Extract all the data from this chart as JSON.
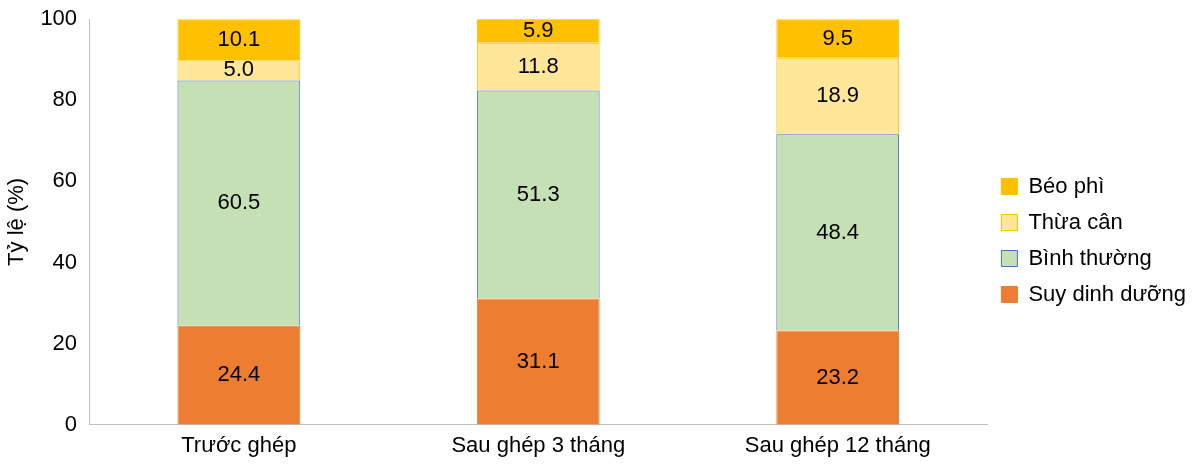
{
  "chart_data": {
    "type": "bar",
    "stacked": true,
    "ylabel": "Tỷ lệ (%)",
    "categories": [
      "Trước ghép",
      "Sau ghép 3 tháng",
      "Sau ghép 12 tháng"
    ],
    "series": [
      {
        "name": "Suy dinh dưỡng",
        "color": "#ed7d31",
        "values": [
          24.4,
          31.1,
          23.2
        ],
        "value_labels": [
          "24.4",
          "31.1",
          "23.2"
        ]
      },
      {
        "name": "Bình thường",
        "color": "#c5e0b4",
        "values": [
          60.5,
          51.3,
          48.4
        ],
        "value_labels": [
          "60.5",
          "51.3",
          "48.4"
        ]
      },
      {
        "name": "Thừa cân",
        "color": "#ffe699",
        "values": [
          5.0,
          11.8,
          18.9
        ],
        "value_labels": [
          "5.0",
          "11.8",
          "18.9"
        ]
      },
      {
        "name": "Béo phì",
        "color": "#ffc000",
        "values": [
          10.1,
          5.9,
          9.5
        ],
        "value_labels": [
          "10.1",
          "5.9",
          "9.5"
        ]
      }
    ],
    "ylim": [
      0,
      100
    ],
    "yticks": [
      0,
      20,
      40,
      60,
      80,
      100
    ],
    "grid": false,
    "legend": "right"
  }
}
